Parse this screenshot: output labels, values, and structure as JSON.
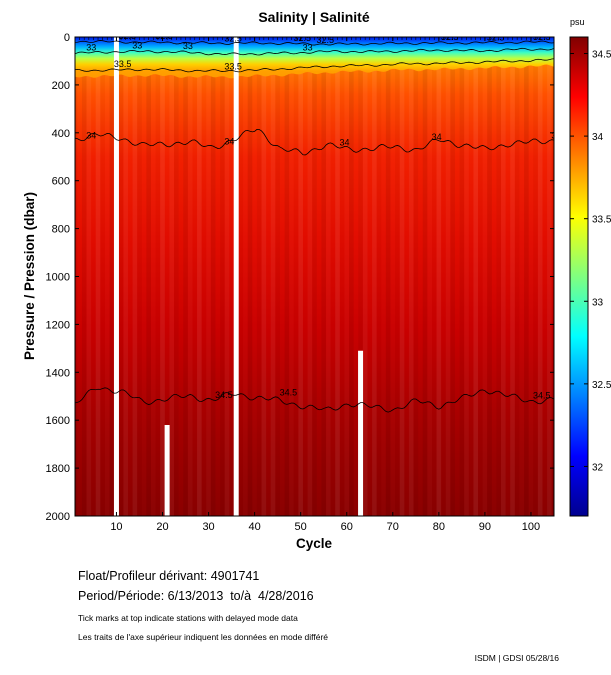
{
  "chart_data": {
    "type": "heatmap",
    "title": "Salinity | Salinité",
    "xlabel": "Cycle",
    "ylabel": "Pressure / Pression (dbar)",
    "xlim": [
      1,
      105
    ],
    "ylim": [
      0,
      2000
    ],
    "x_ticks": [
      10,
      20,
      30,
      40,
      50,
      60,
      70,
      80,
      90,
      100
    ],
    "y_ticks": [
      0,
      200,
      400,
      600,
      800,
      1000,
      1200,
      1400,
      1600,
      1800,
      2000
    ],
    "colorbar": {
      "label": "psu",
      "range": [
        31.7,
        34.6
      ],
      "ticks": [
        32,
        32.5,
        33,
        33.5,
        34,
        34.5
      ],
      "colors": [
        "#00008f",
        "#0000ff",
        "#0080ff",
        "#00ffff",
        "#80ff80",
        "#ffff00",
        "#ff8000",
        "#ff0000",
        "#800000"
      ]
    },
    "contours": [
      {
        "level": 32.5,
        "label": "32.5",
        "pressure": [
          18,
          20,
          22,
          24,
          26,
          25,
          28,
          30,
          28,
          26,
          25,
          24,
          22,
          20
        ]
      },
      {
        "level": 33,
        "label": "33",
        "pressure": [
          68,
          62,
          60,
          64,
          72,
          70,
          66,
          60,
          62,
          58,
          55,
          58,
          52,
          50
        ]
      },
      {
        "level": 33.5,
        "label": "33.5",
        "pressure": [
          140,
          138,
          135,
          140,
          142,
          138,
          130,
          122,
          118,
          112,
          110,
          105,
          100,
          95
        ]
      },
      {
        "level": 34,
        "label": "34",
        "pressure": [
          425,
          410,
          420,
          455,
          445,
          440,
          460,
          430,
          380,
          470,
          485,
          450,
          470,
          465,
          460,
          470,
          430,
          450,
          470,
          445,
          440,
          430
        ]
      },
      {
        "level": 34.5,
        "label": "34.5",
        "pressure": [
          1535,
          1460,
          1480,
          1525,
          1510,
          1500,
          1515,
          1490,
          1505,
          1520,
          1540,
          1560,
          1530,
          1545,
          1555,
          1520,
          1540,
          1510,
          1470,
          1500,
          1520,
          1515
        ]
      }
    ],
    "contour_label_stations": {
      "32.5": [
        10,
        18,
        33,
        48,
        53,
        80,
        90,
        100
      ],
      "33": [
        3,
        13,
        24,
        50
      ],
      "33.5": [
        9,
        33
      ],
      "34": [
        3,
        33,
        58,
        78,
        104
      ],
      "34.5": [
        31,
        45,
        100
      ]
    },
    "missing_profile_cycles": [
      10,
      36
    ],
    "partial_gaps": [
      {
        "cycle": 21,
        "from_pressure": 1620,
        "to_pressure": 2000
      },
      {
        "cycle": 63,
        "from_pressure": 1310,
        "to_pressure": 2000
      }
    ],
    "delayed_mode_ticks_note": "Tick marks at top indicate stations with delayed mode data"
  },
  "float_info": {
    "float_label": "Float/Profileur dérivant:",
    "float_id": "4901741",
    "period_label": "Period/Période:",
    "period_value": "6/13/2013  to/à  4/28/2016",
    "note_en": "Tick marks at top indicate stations with delayed mode data",
    "note_fr": "Les traits de l'axe supérieur indiquent les données en mode différé"
  },
  "credit": "ISDM | GDSI  05/28/16"
}
